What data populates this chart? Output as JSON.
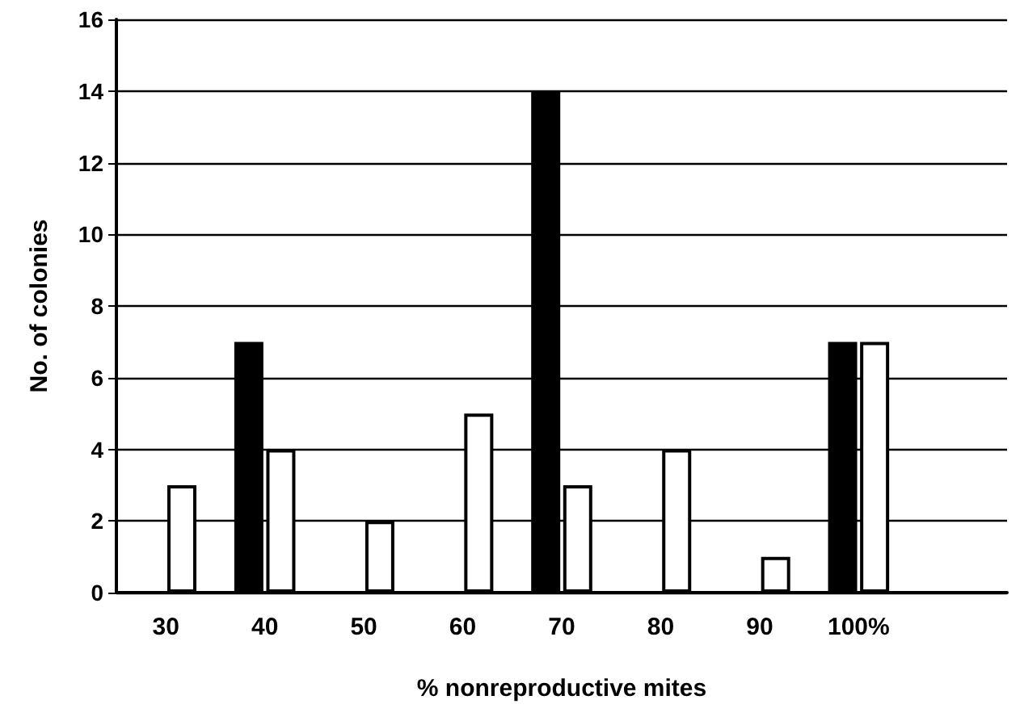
{
  "chart_data": {
    "type": "bar",
    "xlabel": "% nonreproductive mites",
    "ylabel": "No. of colonies",
    "categories": [
      "30",
      "40",
      "50",
      "60",
      "70",
      "80",
      "90",
      "100%",
      null
    ],
    "series": [
      {
        "color": "#000000",
        "values": [
          0,
          7,
          0,
          0,
          14,
          0,
          0,
          7,
          null
        ]
      },
      {
        "color": "#ffffff",
        "values": [
          3,
          4,
          2,
          5,
          3,
          4,
          1,
          7,
          null
        ]
      }
    ],
    "ylim": [
      0,
      16
    ],
    "yticks": [
      0,
      2,
      4,
      6,
      8,
      10,
      12,
      14,
      16
    ],
    "grid": "y"
  }
}
